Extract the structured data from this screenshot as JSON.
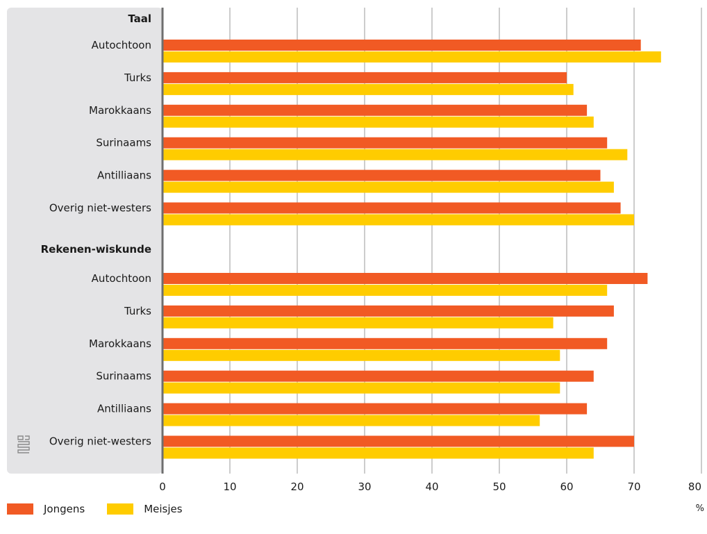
{
  "chart_data": {
    "type": "bar",
    "orientation": "horizontal",
    "groups": [
      {
        "name": "Taal",
        "categories": [
          "Autochtoon",
          "Turks",
          "Marokkaans",
          "Surinaams",
          "Antilliaans",
          "Overig niet-westers"
        ],
        "series": [
          {
            "name": "Jongens",
            "values": [
              71,
              60,
              63,
              66,
              65,
              68
            ]
          },
          {
            "name": "Meisjes",
            "values": [
              74,
              61,
              64,
              69,
              67,
              70
            ]
          }
        ]
      },
      {
        "name": "Rekenen-wiskunde",
        "categories": [
          "Autochtoon",
          "Turks",
          "Marokkaans",
          "Surinaams",
          "Antilliaans",
          "Overig niet-westers"
        ],
        "series": [
          {
            "name": "Jongens",
            "values": [
              72,
              67,
              66,
              64,
              63,
              70
            ]
          },
          {
            "name": "Meisjes",
            "values": [
              66,
              58,
              59,
              59,
              56,
              64
            ]
          }
        ]
      }
    ],
    "xticks": [
      "0",
      "10",
      "20",
      "30",
      "40",
      "50",
      "60",
      "70",
      "80"
    ],
    "xlim": [
      0,
      80
    ],
    "xunit": "%",
    "grid": true,
    "legend": "bottom-left",
    "colors": {
      "Jongens": "#f15a24",
      "Meisjes": "#ffcc00",
      "panel": "#e4e4e6",
      "grid": "#9a9a9a",
      "axis": "#6e6e6e"
    },
    "logo": "cbs-logo"
  }
}
